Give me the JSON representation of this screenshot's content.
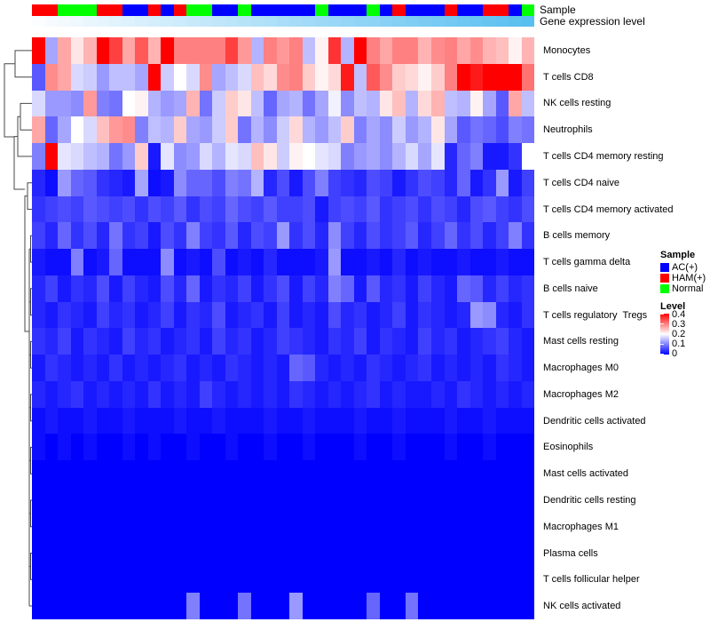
{
  "figure": {
    "annotation_labels": {
      "sample": "Sample",
      "gene": "Gene expression level"
    },
    "legend": {
      "sample_title": "Sample",
      "sample_items": [
        {
          "label": "AC(+)",
          "color": "#0000FF"
        },
        {
          "label": "HAM(+)",
          "color": "#FF0000"
        },
        {
          "label": "Normal",
          "color": "#00FF00"
        }
      ],
      "level_title": "Level",
      "level_ticks": [
        "0.4",
        "0.3",
        "0.2",
        "0.1",
        "0"
      ]
    }
  },
  "chart_data": {
    "type": "heatmap",
    "title": "",
    "xlabel": "",
    "ylabel": "",
    "grid": false,
    "legend_position": "right",
    "colormap": {
      "min": 0,
      "mid": 0.2,
      "max": 0.4,
      "min_color": "#0000FF",
      "mid_color": "#FFFFFF",
      "max_color": "#FF0000"
    },
    "column_annotations": {
      "sample_groups": [
        "HAM",
        "HAM",
        "Normal",
        "Normal",
        "Normal",
        "HAM",
        "HAM",
        "AC",
        "AC",
        "HAM",
        "AC",
        "HAM",
        "Normal",
        "Normal",
        "AC",
        "AC",
        "Normal",
        "AC",
        "AC",
        "AC",
        "AC",
        "AC",
        "Normal",
        "AC",
        "AC",
        "AC",
        "Normal",
        "AC",
        "HAM",
        "AC",
        "AC",
        "AC",
        "HAM",
        "AC",
        "AC",
        "HAM",
        "HAM",
        "AC",
        "Normal"
      ],
      "sample_colors": {
        "AC": "#0000FF",
        "HAM": "#FF0000",
        "Normal": "#00FF00"
      },
      "gene_expression_gradient": {
        "low_color": "#FBFDFF",
        "high_color": "#59BFF0",
        "order": "ascending-left-to-right"
      }
    },
    "rows": [
      "Monocytes",
      "T cells CD8",
      "NK cells resting",
      "Neutrophils",
      "T cells CD4 memory resting",
      "T cells CD4 naive",
      "T cells CD4 memory activated",
      "B cells memory",
      "T cells gamma delta",
      "B cells naive",
      "T cells regulatory  Tregs",
      "Mast cells resting",
      "Macrophages M0",
      "Macrophages M2",
      "Dendritic cells activated",
      "Eosinophils",
      "Mast cells activated",
      "Dendritic cells resting",
      "Macrophages M1",
      "Plasma cells",
      "T cells follicular helper",
      "NK cells activated"
    ],
    "values": [
      [
        0.4,
        0.13,
        0.27,
        0.22,
        0.26,
        0.4,
        0.35,
        0.27,
        0.33,
        0.26,
        0.4,
        0.3,
        0.3,
        0.3,
        0.3,
        0.35,
        0.28,
        0.14,
        0.3,
        0.28,
        0.3,
        0.15,
        0.21,
        0.36,
        0.14,
        0.4,
        0.3,
        0.27,
        0.3,
        0.3,
        0.26,
        0.29,
        0.3,
        0.27,
        0.29,
        0.26,
        0.25,
        0.21,
        0.26
      ],
      [
        0.07,
        0.29,
        0.27,
        0.17,
        0.16,
        0.12,
        0.15,
        0.15,
        0.13,
        0.4,
        0.16,
        0.2,
        0.17,
        0.29,
        0.13,
        0.15,
        0.17,
        0.25,
        0.23,
        0.29,
        0.3,
        0.24,
        0.21,
        0.23,
        0.38,
        0.15,
        0.33,
        0.29,
        0.24,
        0.23,
        0.21,
        0.24,
        0.3,
        0.4,
        0.38,
        0.42,
        0.4,
        0.4,
        0.31
      ],
      [
        0.17,
        0.12,
        0.12,
        0.11,
        0.28,
        0.1,
        0.09,
        0.2,
        0.21,
        0.14,
        0.12,
        0.13,
        0.26,
        0.09,
        0.16,
        0.24,
        0.22,
        0.15,
        0.08,
        0.13,
        0.14,
        0.09,
        0.13,
        0.19,
        0.11,
        0.15,
        0.14,
        0.22,
        0.25,
        0.14,
        0.23,
        0.26,
        0.15,
        0.14,
        0.21,
        0.13,
        0.07,
        0.27,
        0.15
      ],
      [
        0.27,
        0.08,
        0.13,
        0.2,
        0.17,
        0.25,
        0.28,
        0.29,
        0.1,
        0.15,
        0.14,
        0.24,
        0.13,
        0.12,
        0.16,
        0.24,
        0.09,
        0.14,
        0.11,
        0.16,
        0.23,
        0.14,
        0.12,
        0.15,
        0.24,
        0.1,
        0.13,
        0.11,
        0.16,
        0.12,
        0.14,
        0.22,
        0.13,
        0.07,
        0.09,
        0.08,
        0.06,
        0.1,
        0.09
      ],
      [
        0.1,
        0.4,
        0.18,
        0.17,
        0.15,
        0.14,
        0.09,
        0.12,
        0.24,
        0.02,
        0.18,
        0.11,
        0.12,
        0.17,
        0.14,
        0.18,
        0.17,
        0.25,
        0.22,
        0.16,
        0.21,
        0.2,
        0.18,
        0.17,
        0.1,
        0.12,
        0.13,
        0.11,
        0.14,
        0.17,
        0.13,
        0.18,
        0.03,
        0.08,
        0.1,
        0.02,
        0.02,
        0.04,
        0.2
      ],
      [
        0.03,
        0.01,
        0.12,
        0.08,
        0.07,
        0.04,
        0.03,
        0.02,
        0.13,
        0.01,
        0.02,
        0.11,
        0.08,
        0.08,
        0.06,
        0.1,
        0.09,
        0.14,
        0.03,
        0.06,
        0.02,
        0.06,
        0.1,
        0.05,
        0.04,
        0.03,
        0.06,
        0.05,
        0.02,
        0.04,
        0.06,
        0.05,
        0.03,
        0.08,
        0.02,
        0.04,
        0.12,
        0.02,
        0.05
      ],
      [
        0.04,
        0.05,
        0.06,
        0.05,
        0.07,
        0.06,
        0.05,
        0.06,
        0.04,
        0.06,
        0.05,
        0.07,
        0.04,
        0.06,
        0.05,
        0.08,
        0.06,
        0.05,
        0.07,
        0.05,
        0.05,
        0.06,
        0.02,
        0.05,
        0.06,
        0.05,
        0.07,
        0.04,
        0.05,
        0.06,
        0.04,
        0.06,
        0.05,
        0.03,
        0.06,
        0.07,
        0.05,
        0.04,
        0.06
      ],
      [
        0.05,
        0.03,
        0.08,
        0.04,
        0.06,
        0.03,
        0.09,
        0.04,
        0.05,
        0.02,
        0.06,
        0.04,
        0.1,
        0.05,
        0.04,
        0.07,
        0.03,
        0.06,
        0.05,
        0.12,
        0.04,
        0.06,
        0.03,
        0.11,
        0.05,
        0.03,
        0.06,
        0.04,
        0.05,
        0.07,
        0.03,
        0.05,
        0.08,
        0.04,
        0.06,
        0.03,
        0.05,
        0.1,
        0.04
      ],
      [
        0.02,
        0.01,
        0.01,
        0.1,
        0.01,
        0.02,
        0.08,
        0.01,
        0.01,
        0.01,
        0.11,
        0.01,
        0.02,
        0.01,
        0.06,
        0.01,
        0.02,
        0.01,
        0.03,
        0.01,
        0.01,
        0.01,
        0.02,
        0.12,
        0.01,
        0.01,
        0.02,
        0.01,
        0.03,
        0.01,
        0.02,
        0.01,
        0.01,
        0.02,
        0.01,
        0.01,
        0.02,
        0.01,
        0.01
      ],
      [
        0.03,
        0.05,
        0.02,
        0.04,
        0.03,
        0.06,
        0.02,
        0.05,
        0.03,
        0.02,
        0.06,
        0.03,
        0.08,
        0.02,
        0.04,
        0.03,
        0.05,
        0.02,
        0.04,
        0.06,
        0.02,
        0.05,
        0.03,
        0.1,
        0.08,
        0.02,
        0.07,
        0.03,
        0.04,
        0.02,
        0.05,
        0.03,
        0.02,
        0.08,
        0.07,
        0.03,
        0.05,
        0.03,
        0.04
      ],
      [
        0.03,
        0.02,
        0.04,
        0.03,
        0.02,
        0.05,
        0.03,
        0.04,
        0.02,
        0.03,
        0.05,
        0.02,
        0.04,
        0.03,
        0.06,
        0.02,
        0.03,
        0.04,
        0.02,
        0.05,
        0.02,
        0.03,
        0.02,
        0.06,
        0.03,
        0.04,
        0.02,
        0.03,
        0.05,
        0.02,
        0.04,
        0.03,
        0.02,
        0.03,
        0.12,
        0.11,
        0.03,
        0.02,
        0.04
      ],
      [
        0.04,
        0.03,
        0.05,
        0.02,
        0.04,
        0.03,
        0.02,
        0.05,
        0.03,
        0.04,
        0.02,
        0.03,
        0.04,
        0.02,
        0.05,
        0.03,
        0.04,
        0.02,
        0.03,
        0.05,
        0.04,
        0.03,
        0.02,
        0.04,
        0.03,
        0.05,
        0.02,
        0.04,
        0.03,
        0.02,
        0.05,
        0.03,
        0.04,
        0.02,
        0.03,
        0.04,
        0.05,
        0.03,
        0.02
      ],
      [
        0.02,
        0.04,
        0.03,
        0.02,
        0.03,
        0.02,
        0.04,
        0.02,
        0.03,
        0.02,
        0.03,
        0.04,
        0.02,
        0.03,
        0.02,
        0.04,
        0.03,
        0.02,
        0.03,
        0.02,
        0.08,
        0.07,
        0.03,
        0.02,
        0.03,
        0.02,
        0.04,
        0.03,
        0.02,
        0.03,
        0.04,
        0.02,
        0.03,
        0.02,
        0.03,
        0.02,
        0.04,
        0.03,
        0.02
      ],
      [
        0.03,
        0.02,
        0.03,
        0.04,
        0.02,
        0.03,
        0.02,
        0.03,
        0.02,
        0.04,
        0.02,
        0.03,
        0.02,
        0.05,
        0.03,
        0.02,
        0.03,
        0.02,
        0.03,
        0.02,
        0.04,
        0.03,
        0.02,
        0.03,
        0.02,
        0.03,
        0.04,
        0.02,
        0.03,
        0.02,
        0.02,
        0.03,
        0.02,
        0.04,
        0.03,
        0.02,
        0.03,
        0.02,
        0.03
      ],
      [
        0.01,
        0.02,
        0.01,
        0.01,
        0.02,
        0.01,
        0.01,
        0.02,
        0.01,
        0.01,
        0.01,
        0.02,
        0.01,
        0.01,
        0.02,
        0.01,
        0.01,
        0.01,
        0.02,
        0.01,
        0.01,
        0.02,
        0.01,
        0.01,
        0.01,
        0.02,
        0.01,
        0.01,
        0.02,
        0.01,
        0.01,
        0.01,
        0.02,
        0.01,
        0.01,
        0.02,
        0.01,
        0.01,
        0.01
      ],
      [
        0.01,
        0,
        0.01,
        0,
        0.01,
        0,
        0,
        0.01,
        0,
        0.01,
        0,
        0,
        0.01,
        0,
        0,
        0.01,
        0,
        0,
        0.01,
        0,
        0,
        0.01,
        0,
        0,
        0,
        0.01,
        0,
        0,
        0.01,
        0,
        0,
        0,
        0.01,
        0,
        0,
        0.01,
        0,
        0,
        0
      ],
      [
        0,
        0,
        0,
        0,
        0,
        0,
        0,
        0,
        0,
        0,
        0,
        0,
        0,
        0,
        0,
        0,
        0,
        0,
        0,
        0,
        0,
        0,
        0,
        0,
        0,
        0,
        0,
        0,
        0,
        0,
        0,
        0,
        0,
        0,
        0,
        0,
        0,
        0,
        0
      ],
      [
        0,
        0,
        0,
        0,
        0,
        0,
        0,
        0,
        0,
        0,
        0,
        0,
        0,
        0,
        0,
        0,
        0,
        0,
        0,
        0,
        0,
        0,
        0,
        0,
        0,
        0,
        0,
        0,
        0,
        0,
        0,
        0,
        0,
        0,
        0,
        0,
        0,
        0,
        0
      ],
      [
        0,
        0,
        0,
        0,
        0,
        0,
        0,
        0,
        0,
        0,
        0,
        0,
        0,
        0,
        0,
        0,
        0,
        0,
        0,
        0,
        0,
        0,
        0,
        0,
        0,
        0,
        0,
        0,
        0,
        0,
        0,
        0,
        0,
        0,
        0,
        0,
        0,
        0,
        0
      ],
      [
        0,
        0,
        0,
        0,
        0,
        0,
        0,
        0,
        0,
        0,
        0,
        0,
        0,
        0,
        0,
        0,
        0,
        0,
        0,
        0,
        0,
        0,
        0,
        0,
        0,
        0,
        0,
        0,
        0,
        0,
        0,
        0,
        0,
        0,
        0,
        0,
        0,
        0,
        0
      ],
      [
        0,
        0,
        0,
        0,
        0,
        0,
        0,
        0,
        0,
        0,
        0,
        0,
        0,
        0,
        0,
        0,
        0,
        0,
        0,
        0,
        0,
        0,
        0,
        0,
        0,
        0,
        0,
        0,
        0,
        0,
        0,
        0,
        0,
        0,
        0,
        0,
        0,
        0,
        0
      ],
      [
        0,
        0,
        0,
        0,
        0,
        0,
        0,
        0,
        0,
        0,
        0,
        0,
        0.1,
        0,
        0,
        0,
        0.09,
        0,
        0,
        0,
        0.12,
        0,
        0,
        0,
        0,
        0,
        0.08,
        0,
        0,
        0.09,
        0,
        0,
        0,
        0,
        0,
        0,
        0,
        0,
        0
      ]
    ]
  }
}
